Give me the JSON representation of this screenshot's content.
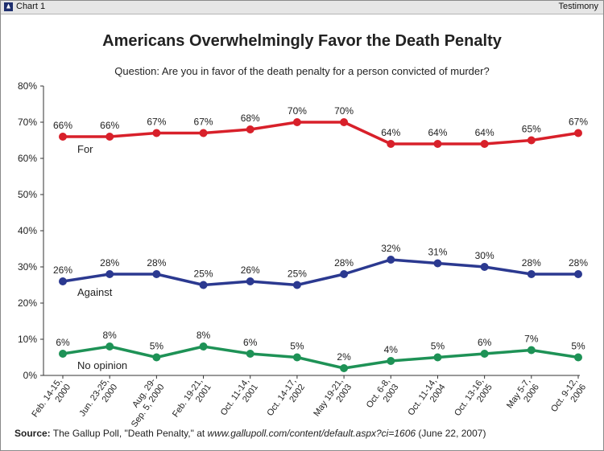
{
  "header": {
    "chart_label": "Chart 1",
    "right_label": "Testimony",
    "icon": "lighthouse-icon"
  },
  "chart_data": {
    "type": "line",
    "title": "Americans Overwhelmingly Favor the Death Penalty",
    "subtitle": "Question: Are you in favor of the death penalty for a person convicted of murder?",
    "categories": [
      [
        "Feb. 14-15,",
        "2000"
      ],
      [
        "Jun. 23-25,",
        "2000"
      ],
      [
        "Aug. 29-",
        "Sep. 5, 2000"
      ],
      [
        "Feb. 19-21,",
        "2001"
      ],
      [
        "Oct. 11-14,",
        "2001"
      ],
      [
        "Oct. 14-17,",
        "2002"
      ],
      [
        "May 19-21,",
        "2003"
      ],
      [
        "Oct. 6-8,",
        "2003"
      ],
      [
        "Oct. 11-14,",
        "2004"
      ],
      [
        "Oct. 13-16,",
        "2005"
      ],
      [
        "May 5-7,",
        "2006"
      ],
      [
        "Oct. 9-12,",
        "2006"
      ]
    ],
    "ylim": [
      0,
      80
    ],
    "yticks": [
      "0%",
      "10%",
      "20%",
      "30%",
      "40%",
      "50%",
      "60%",
      "70%",
      "80%"
    ],
    "series": [
      {
        "name": "For",
        "color": "#d8202a",
        "values": [
          66,
          66,
          67,
          67,
          68,
          70,
          70,
          64,
          64,
          64,
          65,
          67
        ],
        "labels": [
          "66%",
          "66%",
          "67%",
          "67%",
          "68%",
          "70%",
          "70%",
          "64%",
          "64%",
          "64%",
          "65%",
          "67%"
        ]
      },
      {
        "name": "Against",
        "color": "#2b3990",
        "values": [
          26,
          28,
          28,
          25,
          26,
          25,
          28,
          32,
          31,
          30,
          28,
          28
        ],
        "labels": [
          "26%",
          "28%",
          "28%",
          "25%",
          "26%",
          "25%",
          "28%",
          "32%",
          "31%",
          "30%",
          "28%",
          "28%"
        ]
      },
      {
        "name": "No opinion",
        "color": "#1e9256",
        "values": [
          6,
          8,
          5,
          8,
          6,
          5,
          2,
          4,
          5,
          6,
          7,
          5
        ],
        "labels": [
          "6%",
          "8%",
          "5%",
          "8%",
          "6%",
          "5%",
          "2%",
          "4%",
          "5%",
          "6%",
          "7%",
          "5%"
        ]
      }
    ]
  },
  "source": {
    "label": "Source:",
    "text1": " The Gallup Poll, \"Death Penalty,\" at ",
    "url": "www.gallupoll.com/content/default.aspx?ci=1606",
    "text2": " (June 22, 2007)"
  }
}
